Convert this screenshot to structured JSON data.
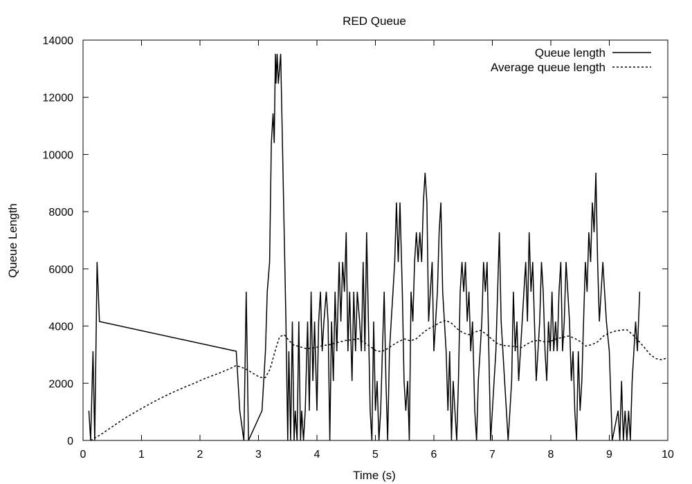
{
  "chart_data": {
    "type": "line",
    "title": "RED Queue",
    "xlabel": "Time (s)",
    "ylabel": "Queue Length",
    "xlim": [
      0,
      10
    ],
    "ylim": [
      0,
      14000
    ],
    "xticks": [
      0,
      1,
      2,
      3,
      4,
      5,
      6,
      7,
      8,
      9,
      10
    ],
    "yticks": [
      0,
      2000,
      4000,
      6000,
      8000,
      10000,
      12000,
      14000
    ],
    "grid": false,
    "legend_position": "top-right",
    "series": [
      {
        "name": "Queue length",
        "style": "solid",
        "color": "#000000",
        "points": [
          [
            0.1,
            1040
          ],
          [
            0.13,
            0
          ],
          [
            0.17,
            3120
          ],
          [
            0.2,
            0
          ],
          [
            0.24,
            6240
          ],
          [
            0.28,
            4160
          ],
          [
            2.62,
            3120
          ],
          [
            2.68,
            1040
          ],
          [
            2.75,
            0
          ],
          [
            2.79,
            5200
          ],
          [
            2.83,
            0
          ],
          [
            3.06,
            1040
          ],
          [
            3.09,
            2080
          ],
          [
            3.12,
            3120
          ],
          [
            3.15,
            5200
          ],
          [
            3.19,
            6240
          ],
          [
            3.22,
            10400
          ],
          [
            3.25,
            11440
          ],
          [
            3.27,
            10400
          ],
          [
            3.29,
            13520
          ],
          [
            3.3,
            12480
          ],
          [
            3.32,
            13520
          ],
          [
            3.34,
            12480
          ],
          [
            3.36,
            13000
          ],
          [
            3.38,
            13520
          ],
          [
            3.42,
            9360
          ],
          [
            3.47,
            4160
          ],
          [
            3.5,
            0
          ],
          [
            3.52,
            3120
          ],
          [
            3.55,
            0
          ],
          [
            3.58,
            4160
          ],
          [
            3.61,
            0
          ],
          [
            3.63,
            1040
          ],
          [
            3.66,
            0
          ],
          [
            3.69,
            4160
          ],
          [
            3.72,
            0
          ],
          [
            3.74,
            1040
          ],
          [
            3.77,
            0
          ],
          [
            3.8,
            1040
          ],
          [
            3.84,
            4160
          ],
          [
            3.87,
            1040
          ],
          [
            3.9,
            5200
          ],
          [
            3.93,
            2080
          ],
          [
            3.96,
            4160
          ],
          [
            4.0,
            1040
          ],
          [
            4.03,
            4160
          ],
          [
            4.06,
            5200
          ],
          [
            4.09,
            3120
          ],
          [
            4.12,
            4160
          ],
          [
            4.16,
            5200
          ],
          [
            4.19,
            4160
          ],
          [
            4.22,
            0
          ],
          [
            4.25,
            4160
          ],
          [
            4.28,
            2080
          ],
          [
            4.31,
            5200
          ],
          [
            4.34,
            3120
          ],
          [
            4.38,
            6240
          ],
          [
            4.41,
            4160
          ],
          [
            4.44,
            6240
          ],
          [
            4.47,
            5200
          ],
          [
            4.5,
            7280
          ],
          [
            4.53,
            3120
          ],
          [
            4.56,
            5200
          ],
          [
            4.6,
            2080
          ],
          [
            4.63,
            5200
          ],
          [
            4.66,
            3120
          ],
          [
            4.69,
            5200
          ],
          [
            4.73,
            4160
          ],
          [
            4.76,
            3120
          ],
          [
            4.79,
            6240
          ],
          [
            4.82,
            3120
          ],
          [
            4.85,
            7280
          ],
          [
            4.88,
            4160
          ],
          [
            4.91,
            1040
          ],
          [
            4.94,
            0
          ],
          [
            4.97,
            4160
          ],
          [
            5.0,
            1040
          ],
          [
            5.03,
            2080
          ],
          [
            5.06,
            0
          ],
          [
            5.09,
            1040
          ],
          [
            5.12,
            3120
          ],
          [
            5.15,
            5200
          ],
          [
            5.18,
            2080
          ],
          [
            5.21,
            0
          ],
          [
            5.24,
            3120
          ],
          [
            5.27,
            4160
          ],
          [
            5.3,
            5200
          ],
          [
            5.33,
            6240
          ],
          [
            5.36,
            8320
          ],
          [
            5.39,
            6240
          ],
          [
            5.42,
            8320
          ],
          [
            5.46,
            5200
          ],
          [
            5.49,
            2080
          ],
          [
            5.52,
            1040
          ],
          [
            5.55,
            2080
          ],
          [
            5.58,
            0
          ],
          [
            5.61,
            5200
          ],
          [
            5.64,
            4160
          ],
          [
            5.67,
            6240
          ],
          [
            5.7,
            7280
          ],
          [
            5.73,
            6240
          ],
          [
            5.76,
            7280
          ],
          [
            5.79,
            6240
          ],
          [
            5.82,
            8320
          ],
          [
            5.85,
            9360
          ],
          [
            5.88,
            8320
          ],
          [
            5.91,
            4160
          ],
          [
            5.94,
            5200
          ],
          [
            5.97,
            6240
          ],
          [
            6.0,
            3120
          ],
          [
            6.03,
            4160
          ],
          [
            6.06,
            5200
          ],
          [
            6.09,
            7280
          ],
          [
            6.12,
            8320
          ],
          [
            6.15,
            5200
          ],
          [
            6.18,
            4160
          ],
          [
            6.21,
            3120
          ],
          [
            6.24,
            1040
          ],
          [
            6.27,
            3120
          ],
          [
            6.3,
            0
          ],
          [
            6.33,
            2080
          ],
          [
            6.36,
            1040
          ],
          [
            6.39,
            0
          ],
          [
            6.42,
            2080
          ],
          [
            6.45,
            5200
          ],
          [
            6.48,
            6240
          ],
          [
            6.51,
            5200
          ],
          [
            6.54,
            6240
          ],
          [
            6.57,
            4160
          ],
          [
            6.6,
            5200
          ],
          [
            6.63,
            3120
          ],
          [
            6.66,
            4160
          ],
          [
            6.7,
            1040
          ],
          [
            6.73,
            0
          ],
          [
            6.76,
            2080
          ],
          [
            6.79,
            3120
          ],
          [
            6.82,
            4160
          ],
          [
            6.85,
            6240
          ],
          [
            6.88,
            5200
          ],
          [
            6.91,
            6240
          ],
          [
            6.94,
            3120
          ],
          [
            6.97,
            0
          ],
          [
            7.0,
            1040
          ],
          [
            7.03,
            2080
          ],
          [
            7.06,
            3120
          ],
          [
            7.09,
            5200
          ],
          [
            7.12,
            7280
          ],
          [
            7.15,
            4160
          ],
          [
            7.18,
            3120
          ],
          [
            7.21,
            2080
          ],
          [
            7.24,
            1040
          ],
          [
            7.27,
            0
          ],
          [
            7.3,
            1040
          ],
          [
            7.33,
            2080
          ],
          [
            7.36,
            5200
          ],
          [
            7.39,
            3120
          ],
          [
            7.42,
            4160
          ],
          [
            7.45,
            2080
          ],
          [
            7.48,
            3120
          ],
          [
            7.51,
            4160
          ],
          [
            7.54,
            5200
          ],
          [
            7.57,
            6240
          ],
          [
            7.6,
            4160
          ],
          [
            7.63,
            7280
          ],
          [
            7.66,
            5200
          ],
          [
            7.69,
            6240
          ],
          [
            7.72,
            4160
          ],
          [
            7.75,
            2080
          ],
          [
            7.78,
            3120
          ],
          [
            7.81,
            4160
          ],
          [
            7.84,
            6240
          ],
          [
            7.87,
            5200
          ],
          [
            7.9,
            3120
          ],
          [
            7.93,
            2080
          ],
          [
            7.96,
            4160
          ],
          [
            7.99,
            3120
          ],
          [
            8.02,
            5200
          ],
          [
            8.05,
            3120
          ],
          [
            8.08,
            4160
          ],
          [
            8.11,
            3120
          ],
          [
            8.14,
            5200
          ],
          [
            8.17,
            6240
          ],
          [
            8.2,
            3120
          ],
          [
            8.23,
            4160
          ],
          [
            8.26,
            6240
          ],
          [
            8.29,
            5200
          ],
          [
            8.32,
            4160
          ],
          [
            8.35,
            2080
          ],
          [
            8.38,
            3120
          ],
          [
            8.41,
            1040
          ],
          [
            8.44,
            0
          ],
          [
            8.47,
            3120
          ],
          [
            8.5,
            1040
          ],
          [
            8.53,
            2080
          ],
          [
            8.56,
            4160
          ],
          [
            8.59,
            6240
          ],
          [
            8.62,
            5200
          ],
          [
            8.65,
            7280
          ],
          [
            8.68,
            6240
          ],
          [
            8.71,
            8320
          ],
          [
            8.74,
            7280
          ],
          [
            8.77,
            9360
          ],
          [
            8.8,
            6240
          ],
          [
            8.83,
            4160
          ],
          [
            8.86,
            5200
          ],
          [
            8.89,
            6240
          ],
          [
            8.92,
            5200
          ],
          [
            8.95,
            4160
          ],
          [
            9.0,
            3120
          ],
          [
            9.05,
            0
          ],
          [
            9.15,
            1040
          ],
          [
            9.18,
            0
          ],
          [
            9.21,
            2080
          ],
          [
            9.24,
            0
          ],
          [
            9.27,
            1040
          ],
          [
            9.3,
            0
          ],
          [
            9.33,
            1040
          ],
          [
            9.36,
            0
          ],
          [
            9.39,
            2080
          ],
          [
            9.42,
            3120
          ],
          [
            9.45,
            4160
          ],
          [
            9.48,
            3120
          ],
          [
            9.52,
            5200
          ]
        ]
      },
      {
        "name": "Average queue length",
        "style": "dotted",
        "color": "#000000",
        "points": [
          [
            0.13,
            0
          ],
          [
            0.3,
            200
          ],
          [
            0.5,
            480
          ],
          [
            0.7,
            760
          ],
          [
            0.9,
            1000
          ],
          [
            1.1,
            1230
          ],
          [
            1.3,
            1450
          ],
          [
            1.5,
            1650
          ],
          [
            1.7,
            1830
          ],
          [
            1.9,
            2000
          ],
          [
            2.1,
            2180
          ],
          [
            2.3,
            2330
          ],
          [
            2.5,
            2500
          ],
          [
            2.62,
            2620
          ],
          [
            2.72,
            2550
          ],
          [
            2.82,
            2460
          ],
          [
            2.92,
            2330
          ],
          [
            3.02,
            2210
          ],
          [
            3.12,
            2200
          ],
          [
            3.2,
            2500
          ],
          [
            3.28,
            3100
          ],
          [
            3.36,
            3620
          ],
          [
            3.44,
            3700
          ],
          [
            3.52,
            3500
          ],
          [
            3.6,
            3340
          ],
          [
            3.7,
            3280
          ],
          [
            3.8,
            3220
          ],
          [
            3.9,
            3220
          ],
          [
            4.0,
            3260
          ],
          [
            4.1,
            3320
          ],
          [
            4.2,
            3340
          ],
          [
            4.3,
            3400
          ],
          [
            4.4,
            3450
          ],
          [
            4.5,
            3500
          ],
          [
            4.6,
            3520
          ],
          [
            4.7,
            3560
          ],
          [
            4.8,
            3440
          ],
          [
            4.9,
            3300
          ],
          [
            5.0,
            3150
          ],
          [
            5.1,
            3100
          ],
          [
            5.2,
            3200
          ],
          [
            5.3,
            3340
          ],
          [
            5.4,
            3460
          ],
          [
            5.5,
            3550
          ],
          [
            5.6,
            3480
          ],
          [
            5.7,
            3560
          ],
          [
            5.8,
            3740
          ],
          [
            5.9,
            3900
          ],
          [
            6.0,
            4000
          ],
          [
            6.1,
            4120
          ],
          [
            6.2,
            4200
          ],
          [
            6.3,
            4100
          ],
          [
            6.4,
            3900
          ],
          [
            6.5,
            3760
          ],
          [
            6.6,
            3700
          ],
          [
            6.7,
            3790
          ],
          [
            6.8,
            3850
          ],
          [
            6.9,
            3710
          ],
          [
            7.0,
            3520
          ],
          [
            7.1,
            3370
          ],
          [
            7.2,
            3320
          ],
          [
            7.3,
            3300
          ],
          [
            7.4,
            3280
          ],
          [
            7.5,
            3250
          ],
          [
            7.6,
            3380
          ],
          [
            7.7,
            3480
          ],
          [
            7.8,
            3500
          ],
          [
            7.9,
            3440
          ],
          [
            8.0,
            3470
          ],
          [
            8.1,
            3560
          ],
          [
            8.2,
            3600
          ],
          [
            8.3,
            3650
          ],
          [
            8.4,
            3580
          ],
          [
            8.5,
            3460
          ],
          [
            8.6,
            3300
          ],
          [
            8.7,
            3350
          ],
          [
            8.8,
            3450
          ],
          [
            8.9,
            3650
          ],
          [
            9.0,
            3760
          ],
          [
            9.1,
            3820
          ],
          [
            9.2,
            3860
          ],
          [
            9.3,
            3870
          ],
          [
            9.4,
            3700
          ],
          [
            9.5,
            3480
          ],
          [
            9.6,
            3250
          ],
          [
            9.7,
            3000
          ],
          [
            9.8,
            2860
          ],
          [
            9.9,
            2820
          ],
          [
            10.0,
            2900
          ]
        ]
      }
    ]
  }
}
